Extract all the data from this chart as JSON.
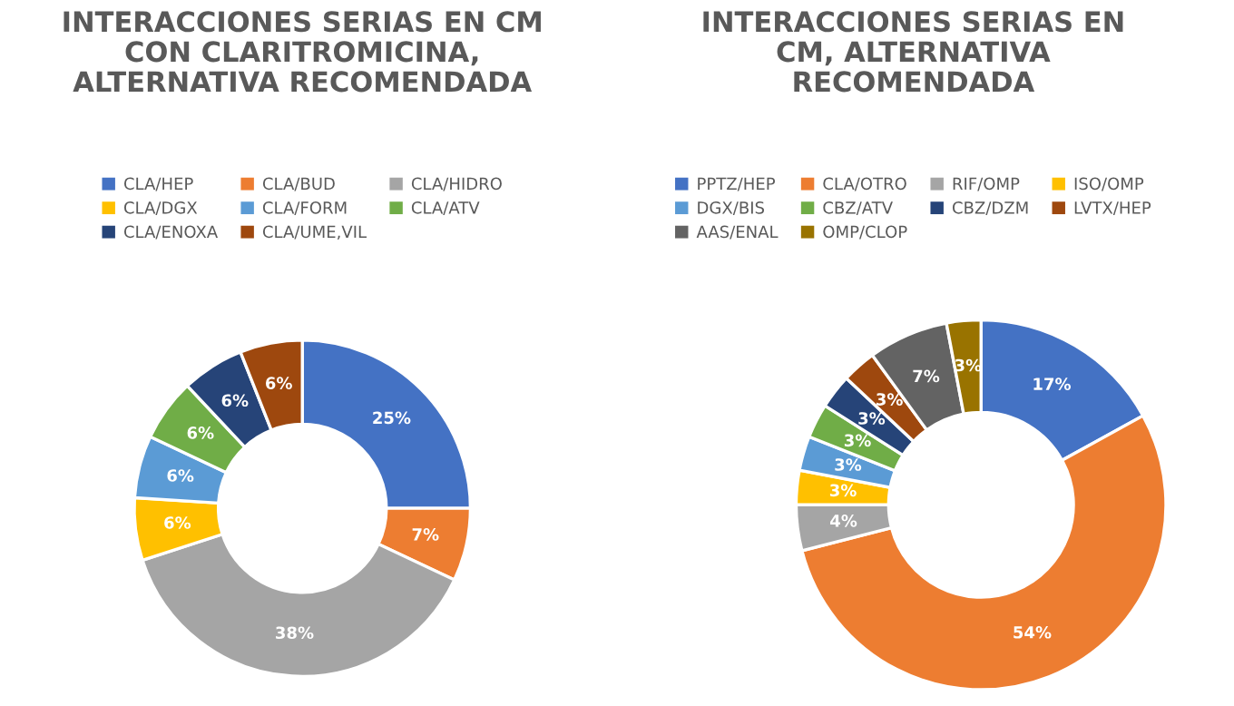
{
  "chart_data": [
    {
      "type": "donut",
      "title": "INTERACCIONES SERIAS EN CM\nCON CLARITROMICINA,\nALTERNATIVA RECOMENDADA",
      "legend": "top",
      "categories": [
        "CLA/HEP",
        "CLA/BUD",
        "CLA/HIDRO",
        "CLA/DGX",
        "CLA/FORM",
        "CLA/ATV",
        "CLA/ENOXA",
        "CLA/UME,VIL"
      ],
      "values": [
        25,
        7,
        38,
        6,
        6,
        6,
        6,
        6
      ],
      "value_labels": [
        "25%",
        "7%",
        "38%",
        "6%",
        "6%",
        "6%",
        "6%",
        "6%"
      ],
      "colors": [
        "#4472c4",
        "#ed7d31",
        "#a5a5a5",
        "#ffc000",
        "#5b9bd5",
        "#70ad47",
        "#264478",
        "#9e480e"
      ]
    },
    {
      "type": "donut",
      "title": "INTERACCIONES SERIAS EN\nCM, ALTERNATIVA\nRECOMENDADA",
      "legend": "top",
      "categories": [
        "PPTZ/HEP",
        "CLA/OTRO",
        "RIF/OMP",
        "ISO/OMP",
        "DGX/BIS",
        "CBZ/ATV",
        "CBZ/DZM",
        "LVTX/HEP",
        "AAS/ENAL",
        "OMP/CLOP"
      ],
      "values": [
        17,
        54,
        4,
        3,
        3,
        3,
        3,
        3,
        7,
        3
      ],
      "value_labels": [
        "17%",
        "54%",
        "4%",
        "3%",
        "3%",
        "3%",
        "3%",
        "3%",
        "7%",
        "3%"
      ],
      "colors": [
        "#4472c4",
        "#ed7d31",
        "#a5a5a5",
        "#ffc000",
        "#5b9bd5",
        "#70ad47",
        "#264478",
        "#9e480e",
        "#636363",
        "#997300"
      ]
    }
  ]
}
